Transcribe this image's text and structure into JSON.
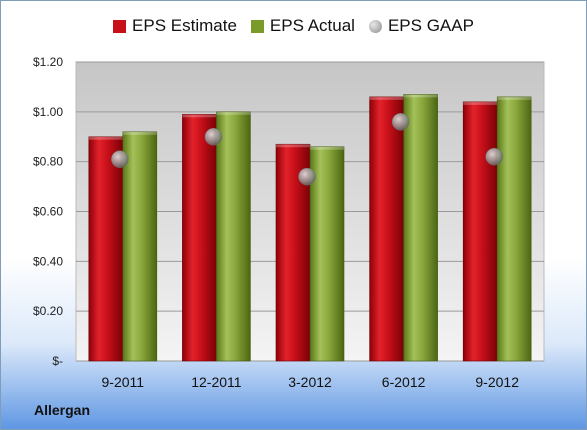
{
  "company": "Allergan",
  "chart_data": {
    "type": "bar",
    "categories": [
      "9-2011",
      "12-2011",
      "3-2012",
      "6-2012",
      "9-2012"
    ],
    "series": [
      {
        "name": "EPS Estimate",
        "kind": "bar",
        "color": "#c8101a",
        "values": [
          0.9,
          0.99,
          0.87,
          1.06,
          1.04
        ]
      },
      {
        "name": "EPS Actual",
        "kind": "bar",
        "color": "#7a9a2a",
        "values": [
          0.92,
          1.0,
          0.86,
          1.07,
          1.06
        ]
      },
      {
        "name": "EPS GAAP",
        "kind": "marker",
        "color": "#8a8a8a",
        "values": [
          0.81,
          0.9,
          0.74,
          0.96,
          0.82
        ]
      }
    ],
    "ylim": [
      0,
      1.2
    ],
    "yticks": [
      {
        "value": 0,
        "label": "$-"
      },
      {
        "value": 0.2,
        "label": "$0.20"
      },
      {
        "value": 0.4,
        "label": "$0.40"
      },
      {
        "value": 0.6,
        "label": "$0.60"
      },
      {
        "value": 0.8,
        "label": "$0.80"
      },
      {
        "value": 1.0,
        "label": "$1.00"
      },
      {
        "value": 1.2,
        "label": "$1.20"
      }
    ],
    "grid": true,
    "legend": "top"
  }
}
